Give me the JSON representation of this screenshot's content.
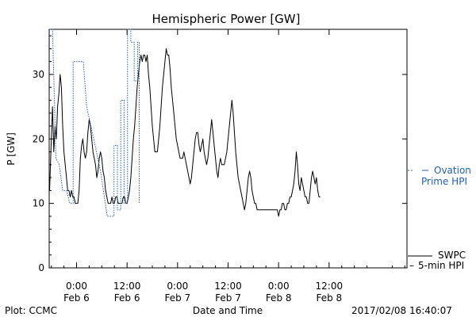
{
  "chart_data": {
    "type": "line",
    "title": "Hemispheric Power [GW]",
    "xlabel": "Date and Time",
    "ylabel": "P [GW]",
    "ylim": [
      0,
      37
    ],
    "xlim": [
      -6.5,
      78.5
    ],
    "x_unit": "hours since 2017-02-06 00:00",
    "yticks": [
      0,
      10,
      20,
      30
    ],
    "xticks": [
      {
        "x": 0,
        "time": "0:00",
        "date": "Feb 6"
      },
      {
        "x": 12,
        "time": "12:00",
        "date": "Feb 6"
      },
      {
        "x": 24,
        "time": "0:00",
        "date": "Feb 7"
      },
      {
        "x": 36,
        "time": "12:00",
        "date": "Feb 7"
      },
      {
        "x": 48,
        "time": "0:00",
        "date": "Feb 8"
      },
      {
        "x": 60,
        "time": "12:00",
        "date": "Feb 8"
      }
    ],
    "grid": false,
    "legend": "right",
    "series": [
      {
        "name": "SWPC 5-min HPI",
        "legend_lines": [
          "SWPC",
          "5-min HPI"
        ],
        "color": "#000000",
        "style": "solid",
        "points": [
          [
            -6.4,
            12
          ],
          [
            -6.0,
            20
          ],
          [
            -5.7,
            25
          ],
          [
            -5.4,
            18
          ],
          [
            -5.1,
            22
          ],
          [
            -4.8,
            20
          ],
          [
            -4.5,
            25
          ],
          [
            -4.2,
            27
          ],
          [
            -3.9,
            30
          ],
          [
            -3.6,
            28
          ],
          [
            -3.3,
            22
          ],
          [
            -3.0,
            18
          ],
          [
            -2.7,
            16
          ],
          [
            -2.4,
            14
          ],
          [
            -2.1,
            12
          ],
          [
            -1.8,
            12
          ],
          [
            -1.5,
            11
          ],
          [
            -1.2,
            12
          ],
          [
            -0.9,
            11
          ],
          [
            -0.6,
            11
          ],
          [
            -0.3,
            10
          ],
          [
            0.0,
            10
          ],
          [
            0.3,
            10
          ],
          [
            0.6,
            12
          ],
          [
            0.9,
            17
          ],
          [
            1.2,
            19
          ],
          [
            1.5,
            20
          ],
          [
            1.8,
            18
          ],
          [
            2.1,
            17
          ],
          [
            2.4,
            18
          ],
          [
            2.7,
            21
          ],
          [
            3.0,
            23
          ],
          [
            3.3,
            22
          ],
          [
            3.6,
            20
          ],
          [
            3.9,
            18
          ],
          [
            4.2,
            17
          ],
          [
            4.5,
            16
          ],
          [
            4.8,
            14
          ],
          [
            5.1,
            15
          ],
          [
            5.4,
            17
          ],
          [
            5.7,
            18
          ],
          [
            6.0,
            17
          ],
          [
            6.3,
            15
          ],
          [
            6.6,
            14
          ],
          [
            6.9,
            12
          ],
          [
            7.2,
            11
          ],
          [
            7.5,
            10
          ],
          [
            7.8,
            10
          ],
          [
            8.1,
            10
          ],
          [
            8.4,
            11
          ],
          [
            8.7,
            10
          ],
          [
            9.0,
            10
          ],
          [
            9.3,
            11
          ],
          [
            9.6,
            11
          ],
          [
            9.9,
            10
          ],
          [
            10.2,
            10
          ],
          [
            10.5,
            10
          ],
          [
            10.8,
            10
          ],
          [
            11.1,
            11
          ],
          [
            11.4,
            11
          ],
          [
            11.7,
            10
          ],
          [
            12.0,
            10
          ],
          [
            12.3,
            11
          ],
          [
            12.6,
            12
          ],
          [
            12.9,
            14
          ],
          [
            13.2,
            17
          ],
          [
            13.5,
            20
          ],
          [
            13.8,
            22
          ],
          [
            14.1,
            25
          ],
          [
            14.4,
            28
          ],
          [
            14.7,
            30
          ],
          [
            15.0,
            32
          ],
          [
            15.3,
            33
          ],
          [
            15.6,
            32
          ],
          [
            15.9,
            33
          ],
          [
            16.2,
            33
          ],
          [
            16.5,
            32
          ],
          [
            16.8,
            33
          ],
          [
            17.1,
            30
          ],
          [
            17.4,
            28
          ],
          [
            17.7,
            25
          ],
          [
            18.0,
            22
          ],
          [
            18.3,
            20
          ],
          [
            18.6,
            18
          ],
          [
            18.9,
            18
          ],
          [
            19.2,
            18
          ],
          [
            19.5,
            20
          ],
          [
            19.8,
            22
          ],
          [
            20.1,
            25
          ],
          [
            20.4,
            28
          ],
          [
            20.7,
            30
          ],
          [
            21.0,
            32
          ],
          [
            21.3,
            34
          ],
          [
            21.6,
            33
          ],
          [
            21.9,
            33
          ],
          [
            22.2,
            31
          ],
          [
            22.5,
            28
          ],
          [
            22.8,
            26
          ],
          [
            23.1,
            24
          ],
          [
            23.4,
            22
          ],
          [
            23.7,
            20
          ],
          [
            24.0,
            19
          ],
          [
            24.3,
            18
          ],
          [
            24.6,
            17
          ],
          [
            24.9,
            17
          ],
          [
            25.2,
            17
          ],
          [
            25.5,
            18
          ],
          [
            25.8,
            17
          ],
          [
            26.1,
            16
          ],
          [
            26.4,
            15
          ],
          [
            26.7,
            14
          ],
          [
            27.0,
            13
          ],
          [
            27.3,
            14
          ],
          [
            27.6,
            16
          ],
          [
            27.9,
            18
          ],
          [
            28.2,
            20
          ],
          [
            28.5,
            21
          ],
          [
            28.8,
            21
          ],
          [
            29.1,
            19
          ],
          [
            29.4,
            18
          ],
          [
            29.7,
            19
          ],
          [
            30.0,
            20
          ],
          [
            30.3,
            18
          ],
          [
            30.6,
            17
          ],
          [
            30.9,
            16
          ],
          [
            31.2,
            17
          ],
          [
            31.5,
            19
          ],
          [
            31.8,
            21
          ],
          [
            32.1,
            23
          ],
          [
            32.4,
            21
          ],
          [
            32.7,
            19
          ],
          [
            33.0,
            17
          ],
          [
            33.3,
            15
          ],
          [
            33.6,
            14
          ],
          [
            33.9,
            16
          ],
          [
            34.2,
            17
          ],
          [
            34.5,
            16
          ],
          [
            34.8,
            16
          ],
          [
            35.1,
            16
          ],
          [
            35.4,
            17
          ],
          [
            35.7,
            18
          ],
          [
            36.0,
            20
          ],
          [
            36.3,
            22
          ],
          [
            36.6,
            24
          ],
          [
            36.9,
            26
          ],
          [
            37.2,
            24
          ],
          [
            37.5,
            21
          ],
          [
            37.8,
            18
          ],
          [
            38.1,
            16
          ],
          [
            38.4,
            14
          ],
          [
            38.7,
            13
          ],
          [
            39.0,
            12
          ],
          [
            39.3,
            11
          ],
          [
            39.6,
            10
          ],
          [
            39.9,
            9
          ],
          [
            40.2,
            10
          ],
          [
            40.5,
            12
          ],
          [
            40.8,
            14
          ],
          [
            41.1,
            15
          ],
          [
            41.4,
            14
          ],
          [
            41.7,
            12
          ],
          [
            42.0,
            11
          ],
          [
            42.3,
            10
          ],
          [
            42.6,
            10
          ],
          [
            42.9,
            9
          ],
          [
            43.2,
            9
          ],
          [
            43.5,
            9
          ],
          [
            43.8,
            9
          ],
          [
            44.1,
            9
          ],
          [
            44.4,
            9
          ],
          [
            44.7,
            9
          ],
          [
            45.0,
            9
          ],
          [
            45.3,
            9
          ],
          [
            45.6,
            9
          ],
          [
            45.9,
            9
          ],
          [
            46.2,
            9
          ],
          [
            46.5,
            9
          ],
          [
            46.8,
            9
          ],
          [
            47.1,
            9
          ],
          [
            47.4,
            9
          ],
          [
            47.7,
            9
          ],
          [
            48.0,
            8
          ],
          [
            48.3,
            9
          ],
          [
            48.6,
            9
          ],
          [
            48.9,
            10
          ],
          [
            49.2,
            10
          ],
          [
            49.5,
            9
          ],
          [
            49.8,
            9
          ],
          [
            50.1,
            10
          ],
          [
            50.4,
            10
          ],
          [
            50.7,
            11
          ],
          [
            51.0,
            11
          ],
          [
            51.3,
            12
          ],
          [
            51.6,
            13
          ],
          [
            51.9,
            15
          ],
          [
            52.2,
            18
          ],
          [
            52.5,
            16
          ],
          [
            52.8,
            13
          ],
          [
            53.1,
            12
          ],
          [
            53.4,
            14
          ],
          [
            53.7,
            13
          ],
          [
            54.0,
            12
          ],
          [
            54.3,
            11
          ],
          [
            54.6,
            11
          ],
          [
            54.9,
            10
          ],
          [
            55.2,
            10
          ],
          [
            55.5,
            12
          ],
          [
            55.8,
            14
          ],
          [
            56.1,
            15
          ],
          [
            56.4,
            14
          ],
          [
            56.7,
            13
          ],
          [
            57.0,
            14
          ],
          [
            57.3,
            12
          ],
          [
            57.6,
            11
          ],
          [
            57.9,
            11
          ]
        ]
      },
      {
        "name": "Ovation Prime HPI",
        "legend_lines": [
          "Ovation",
          "Prime HPI"
        ],
        "color": "#1f5fc0",
        "style": "dotted",
        "points": [
          [
            -6.4,
            37
          ],
          [
            -5.7,
            37
          ],
          [
            -4.9,
            17
          ],
          [
            -4.1,
            16
          ],
          [
            -3.3,
            12
          ],
          [
            -2.4,
            12
          ],
          [
            -1.6,
            10
          ],
          [
            -0.8,
            10
          ],
          [
            -0.8,
            32
          ],
          [
            1.6,
            32
          ],
          [
            2.4,
            25
          ],
          [
            4.1,
            20
          ],
          [
            5.7,
            15
          ],
          [
            7.3,
            8
          ],
          [
            8.9,
            8
          ],
          [
            8.9,
            10
          ],
          [
            8.9,
            19
          ],
          [
            9.7,
            19
          ],
          [
            9.7,
            9
          ],
          [
            10.5,
            9
          ],
          [
            10.5,
            26
          ],
          [
            11.3,
            26
          ],
          [
            11.3,
            10
          ],
          [
            12.1,
            10
          ],
          [
            12.1,
            37
          ],
          [
            12.9,
            37
          ],
          [
            12.9,
            35
          ],
          [
            13.7,
            35
          ],
          [
            13.7,
            29
          ],
          [
            14.5,
            29
          ],
          [
            14.5,
            35
          ],
          [
            14.9,
            35
          ],
          [
            14.9,
            10
          ]
        ]
      }
    ]
  },
  "footer": {
    "left": "Plot: CCMC",
    "center": "Date and Time",
    "right": "2017/02/08 16:40:07"
  },
  "colors": {
    "ovation": "#1f5fc0",
    "swpc": "#000000"
  }
}
